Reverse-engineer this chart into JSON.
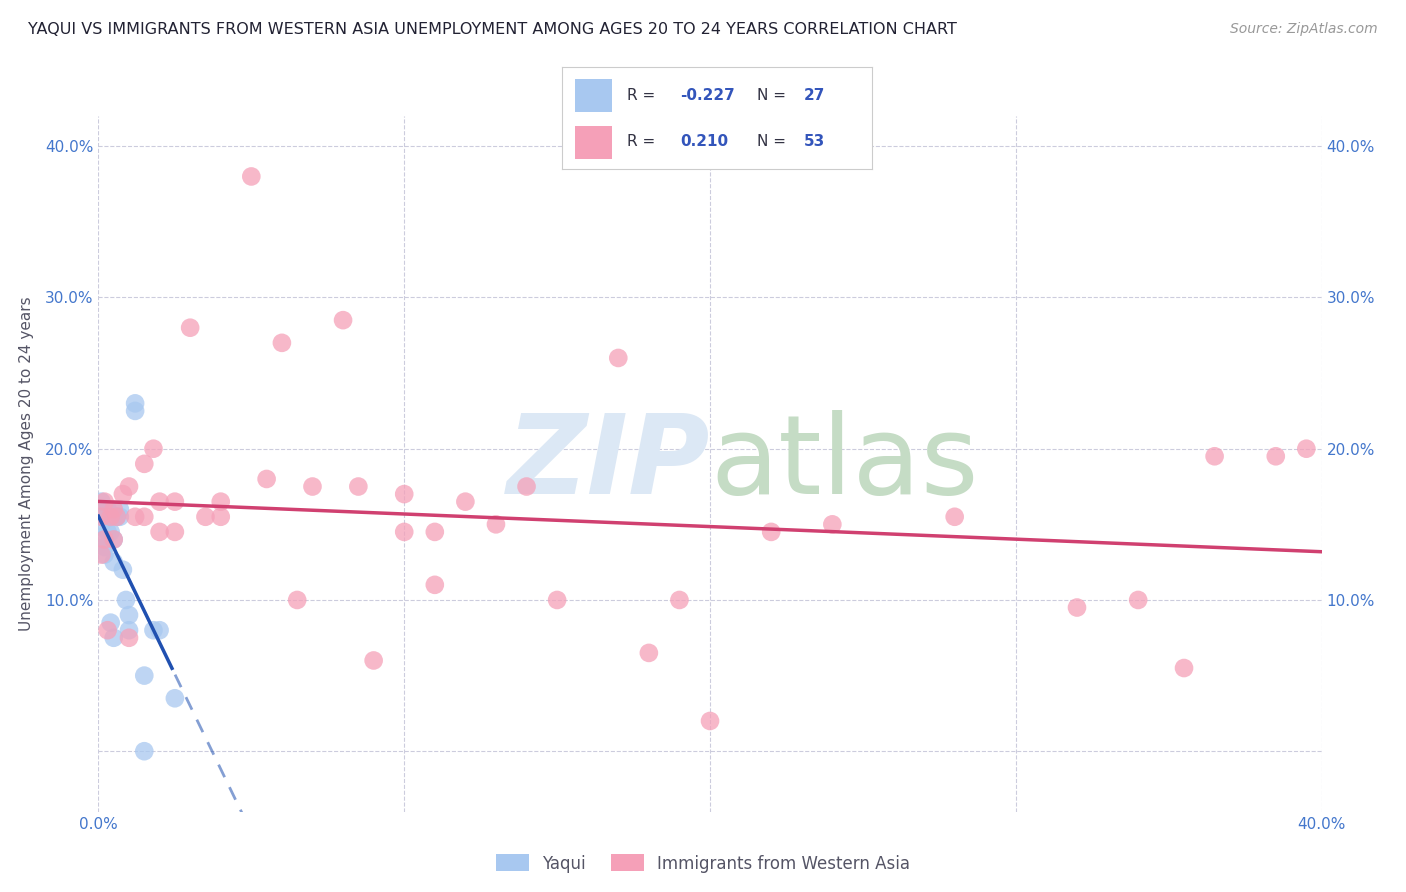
{
  "title": "YAQUI VS IMMIGRANTS FROM WESTERN ASIA UNEMPLOYMENT AMONG AGES 20 TO 24 YEARS CORRELATION CHART",
  "source": "Source: ZipAtlas.com",
  "ylabel": "Unemployment Among Ages 20 to 24 years",
  "legend_label1": "Yaqui",
  "legend_label2": "Immigrants from Western Asia",
  "r1": "-0.227",
  "n1": "27",
  "r2": "0.210",
  "n2": "53",
  "xlim": [
    0.0,
    0.4
  ],
  "ylim": [
    -0.04,
    0.42
  ],
  "yticks": [
    0.0,
    0.1,
    0.2,
    0.3,
    0.4
  ],
  "xticks": [
    0.0,
    0.1,
    0.2,
    0.3,
    0.4
  ],
  "blue_color": "#A8C8F0",
  "pink_color": "#F5A0B8",
  "blue_line_color": "#2050B0",
  "pink_line_color": "#D04070",
  "blue_scatter_x": [
    0.001,
    0.001,
    0.001,
    0.002,
    0.002,
    0.002,
    0.003,
    0.003,
    0.004,
    0.004,
    0.005,
    0.005,
    0.005,
    0.006,
    0.007,
    0.007,
    0.008,
    0.009,
    0.01,
    0.01,
    0.012,
    0.012,
    0.015,
    0.015,
    0.018,
    0.02,
    0.025
  ],
  "blue_scatter_y": [
    0.15,
    0.155,
    0.165,
    0.13,
    0.135,
    0.14,
    0.145,
    0.16,
    0.085,
    0.145,
    0.075,
    0.125,
    0.14,
    0.155,
    0.155,
    0.16,
    0.12,
    0.1,
    0.08,
    0.09,
    0.225,
    0.23,
    0.0,
    0.05,
    0.08,
    0.08,
    0.035
  ],
  "pink_scatter_x": [
    0.001,
    0.001,
    0.002,
    0.002,
    0.003,
    0.004,
    0.005,
    0.005,
    0.006,
    0.008,
    0.01,
    0.01,
    0.012,
    0.015,
    0.015,
    0.018,
    0.02,
    0.02,
    0.025,
    0.025,
    0.03,
    0.035,
    0.04,
    0.04,
    0.05,
    0.055,
    0.06,
    0.065,
    0.07,
    0.08,
    0.085,
    0.09,
    0.1,
    0.1,
    0.11,
    0.11,
    0.12,
    0.13,
    0.14,
    0.15,
    0.17,
    0.18,
    0.19,
    0.2,
    0.22,
    0.24,
    0.28,
    0.32,
    0.34,
    0.355,
    0.365,
    0.385,
    0.395
  ],
  "pink_scatter_y": [
    0.13,
    0.155,
    0.14,
    0.165,
    0.08,
    0.155,
    0.14,
    0.16,
    0.155,
    0.17,
    0.075,
    0.175,
    0.155,
    0.155,
    0.19,
    0.2,
    0.145,
    0.165,
    0.145,
    0.165,
    0.28,
    0.155,
    0.155,
    0.165,
    0.38,
    0.18,
    0.27,
    0.1,
    0.175,
    0.285,
    0.175,
    0.06,
    0.145,
    0.17,
    0.11,
    0.145,
    0.165,
    0.15,
    0.175,
    0.1,
    0.26,
    0.065,
    0.1,
    0.02,
    0.145,
    0.15,
    0.155,
    0.095,
    0.1,
    0.055,
    0.195,
    0.195,
    0.2
  ]
}
